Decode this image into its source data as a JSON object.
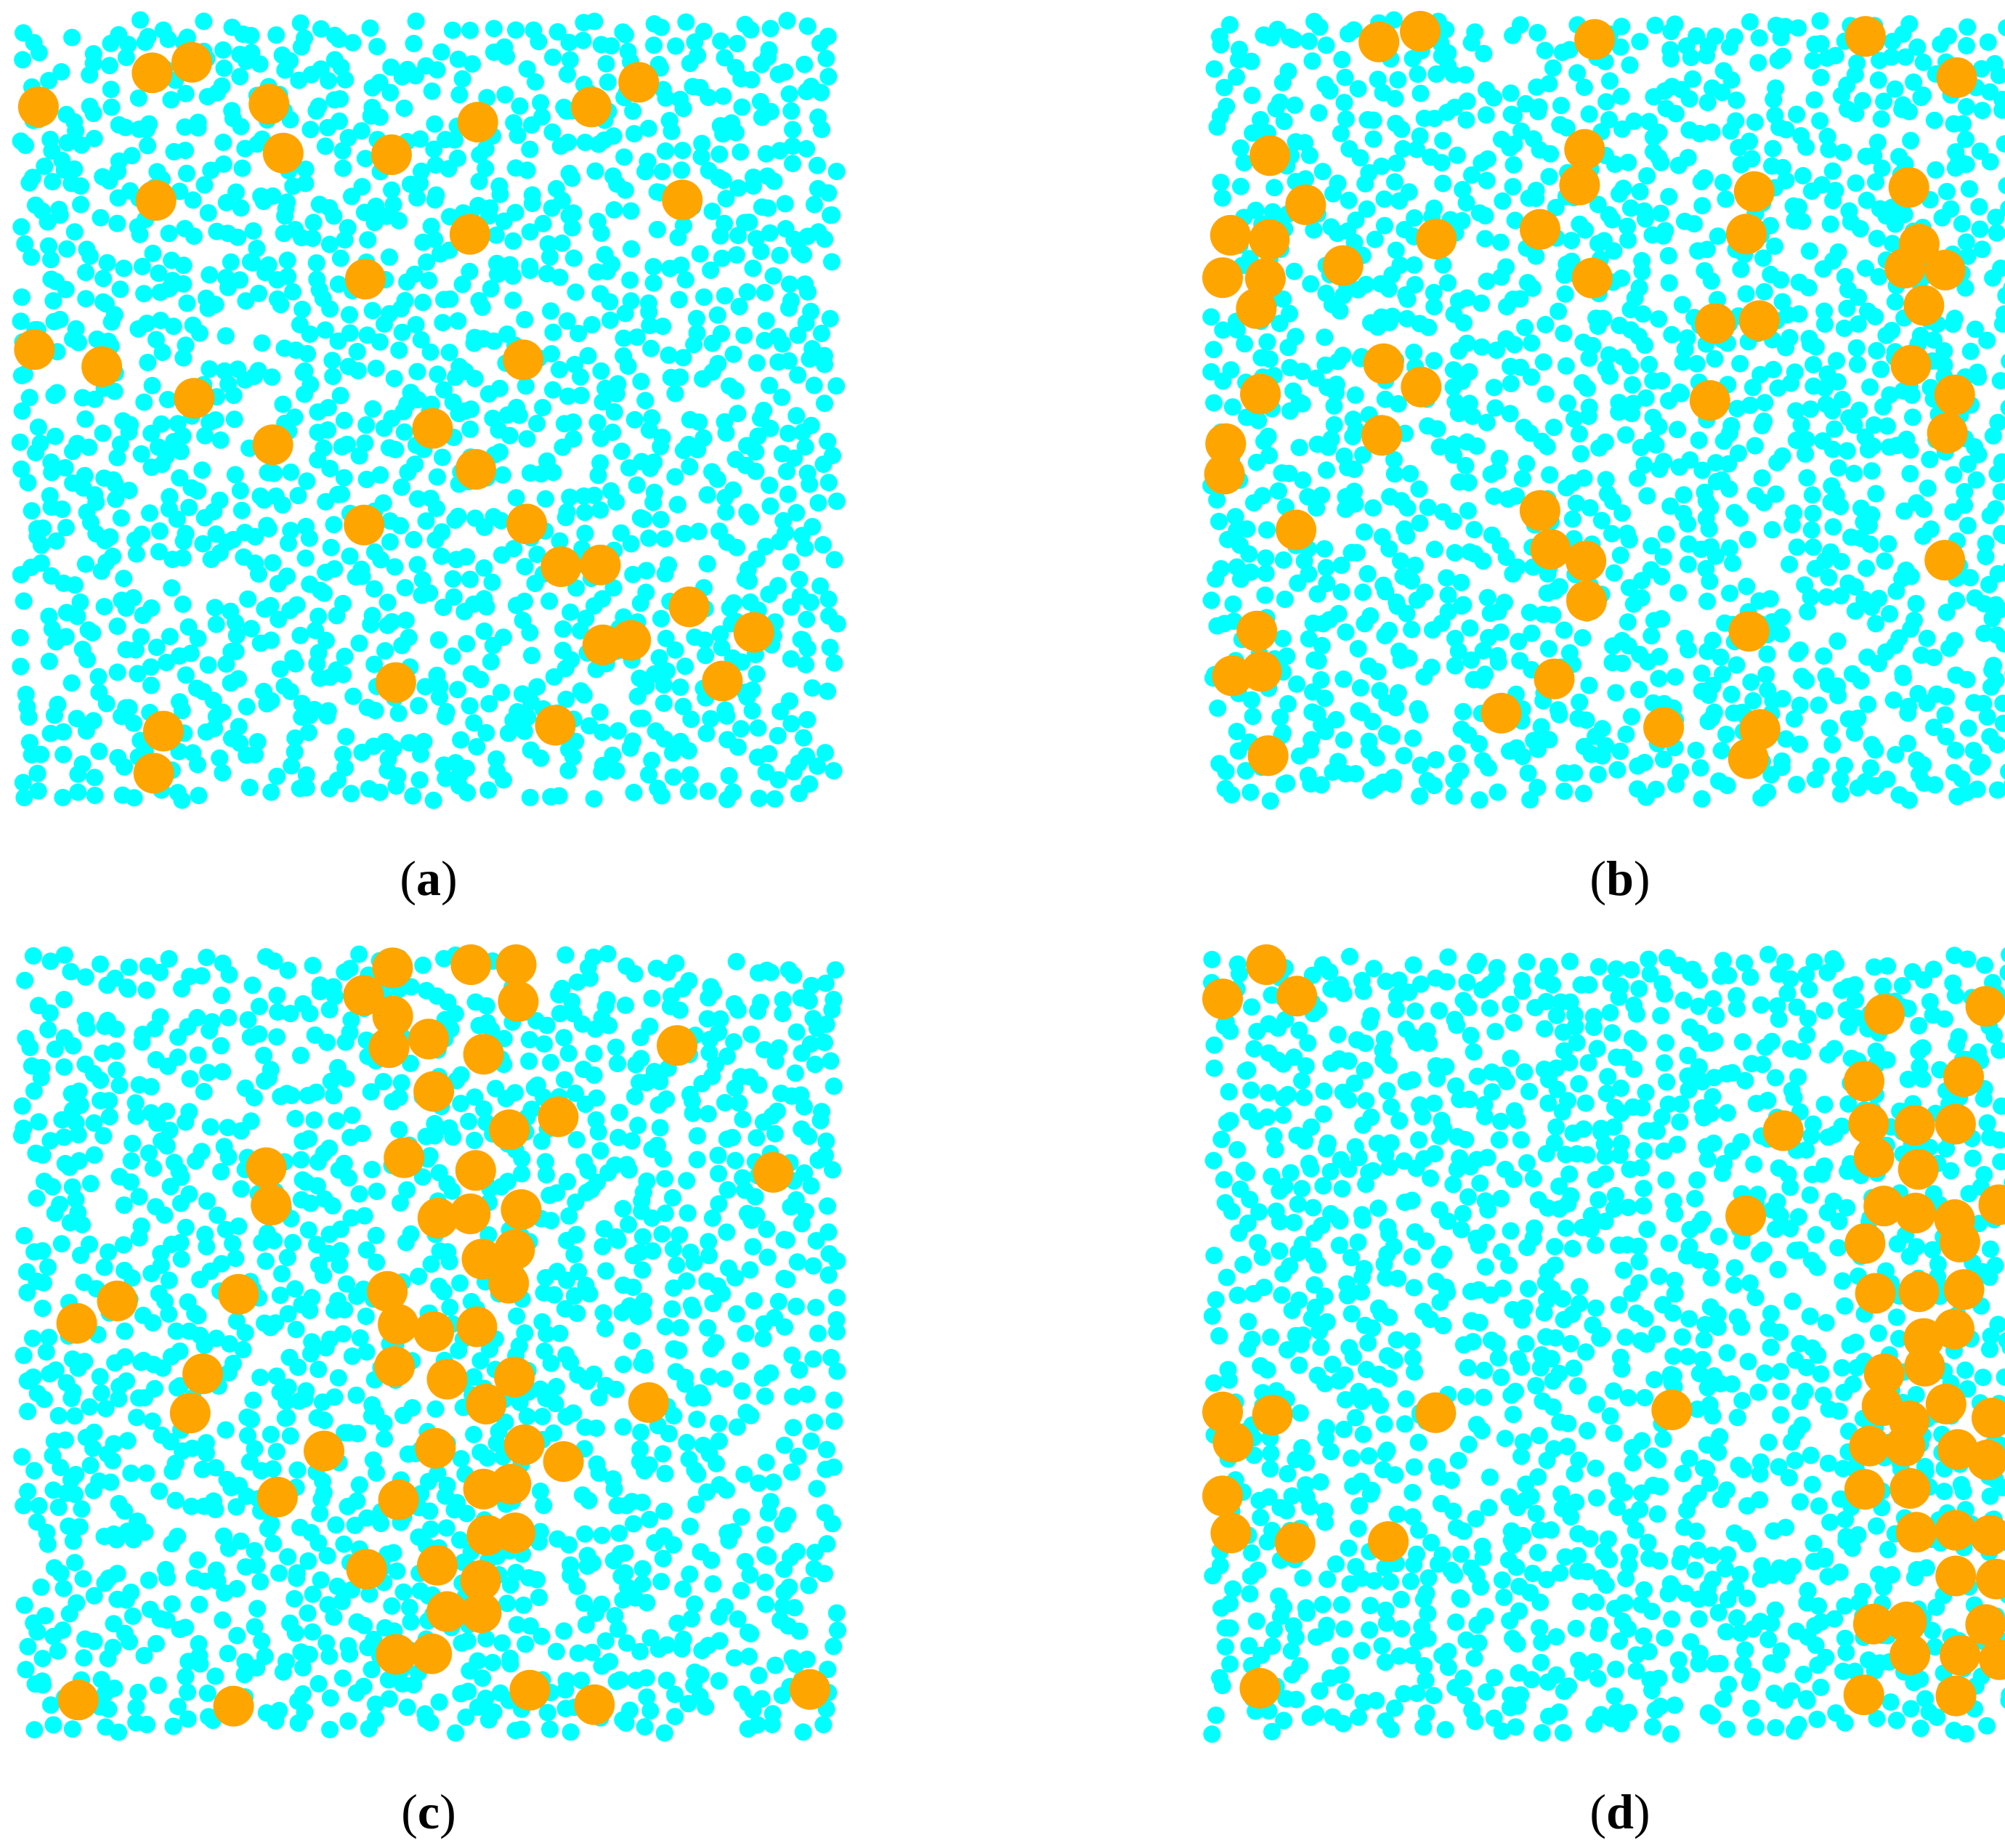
{
  "colors": {
    "small_particle": "#00FFFF",
    "large_particle": "#FFA500",
    "background": "#FFFFFF"
  },
  "panels": [
    {
      "id": "a",
      "label": "a",
      "open": "(",
      "close": ")",
      "pattern": "uniform"
    },
    {
      "id": "b",
      "label": "b",
      "open": "(",
      "close": ")",
      "pattern": "strands"
    },
    {
      "id": "c",
      "label": "c",
      "open": "(",
      "close": ")",
      "pattern": "central-column"
    },
    {
      "id": "d",
      "label": "d",
      "open": "(",
      "close": ")",
      "pattern": "edge-columns"
    }
  ]
}
